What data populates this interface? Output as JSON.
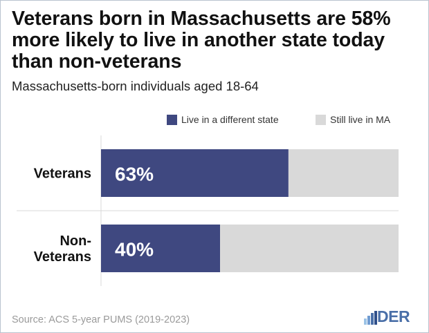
{
  "title": "Veterans born in Massachusetts are 58% more likely to live in another state today than non-veterans",
  "subtitle": "Massachusetts-born individuals aged 18-64",
  "source": "Source: ACS 5-year PUMS (2019-2023)",
  "logo_text": "DER",
  "colors": {
    "primary": "#3f4880",
    "secondary": "#d9d9d9",
    "logo": "#4a6fa8"
  },
  "chart_data": {
    "type": "bar",
    "orientation": "horizontal",
    "stacked": true,
    "categories": [
      "Veterans",
      "Non-Veterans"
    ],
    "category_lines": [
      [
        "Veterans"
      ],
      [
        "Non-",
        "Veterans"
      ]
    ],
    "series": [
      {
        "name": "Live in a different state",
        "values": [
          63,
          40
        ],
        "labels": [
          "63%",
          "40%"
        ]
      },
      {
        "name": "Still live in MA",
        "values": [
          37,
          60
        ]
      }
    ],
    "xlim": [
      0,
      100
    ],
    "legend": "top-right"
  }
}
